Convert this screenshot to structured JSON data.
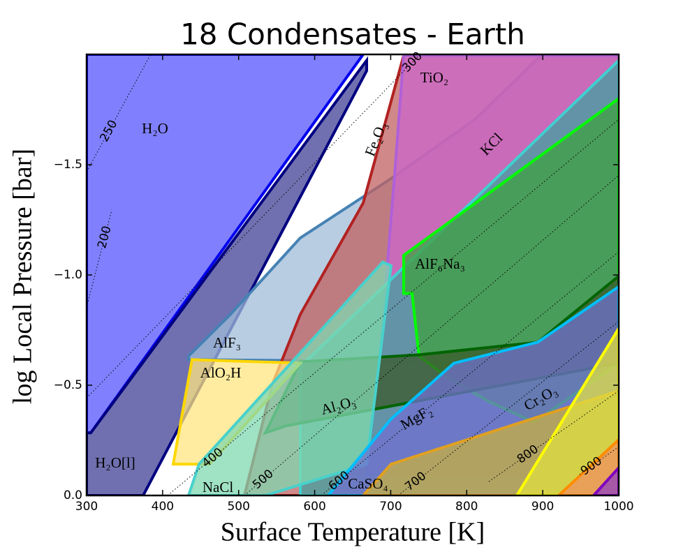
{
  "chart_data": {
    "type": "area",
    "title": "18 Condensates - Earth",
    "x_label": "Surface Temperature [K]",
    "y_label": "log Local Pressure [bar]",
    "xlim": [
      300,
      1000
    ],
    "ylim": [
      0,
      -2.0
    ],
    "xticks": [
      300,
      400,
      500,
      600,
      700,
      800,
      900,
      1000
    ],
    "yticks": [
      {
        "value": 0,
        "label": "0.0"
      },
      {
        "value": -0.5,
        "label": "−0.5"
      },
      {
        "value": -1.0,
        "label": "−1.0"
      },
      {
        "value": -1.5,
        "label": "−1.5"
      }
    ],
    "series": [
      {
        "name": "H₂O",
        "color": "#0000ee",
        "fill_color": "#8080ff",
        "x": [
          300,
          663.8,
          305.5,
          300
        ],
        "y": [
          -2.0,
          -2.0,
          -0.284,
          -0.284
        ]
      },
      {
        "name": "H₂O[l]",
        "color": "#000080",
        "fill_color": "#7070b0",
        "x": [
          300,
          305.5,
          668.4,
          668.4,
          374.4,
          300
        ],
        "y": [
          -0.284,
          -0.284,
          -1.973,
          -1.926,
          0,
          0
        ]
      },
      {
        "name": "AlF₃",
        "color": "#4682b4",
        "fill_color": "#a0bcd8",
        "x": [
          434.1,
          489.2,
          581.1,
          700.5,
          810.7,
          898.0,
          1000,
          1000,
          434.1
        ],
        "y": [
          -0.632,
          -0.821,
          -1.168,
          -1.437,
          -1.705,
          -1.996,
          -1.996,
          -0.6,
          -0.616
        ]
      },
      {
        "name": "Fe₂O₃",
        "color": "#b22222",
        "fill_color": "#c06060",
        "x": [
          717.1,
          1000,
          1000,
          507.6,
          544.4,
          581.1,
          663.8
        ],
        "y": [
          -1.996,
          -1.996,
          0,
          0,
          -0.505,
          -0.821,
          -1.326
        ]
      },
      {
        "name": "TiO₂",
        "color": "#b060d8",
        "fill_color": "#cc66cc",
        "x": [
          717.1,
          1000,
          1000,
          668.4,
          686.7,
          705.1
        ],
        "y": [
          -1.996,
          -1.996,
          -0.095,
          -0.095,
          -0.663,
          -1.452
        ]
      },
      {
        "name": "KCl",
        "color": "#40d0d0",
        "fill_color": "#40a0a0",
        "x": [
          581.1,
          1000,
          1000,
          581.1
        ],
        "y": [
          -0.584,
          -1.973,
          0,
          0
        ]
      },
      {
        "name": "AlF₆Na₃",
        "color": "#00ff00",
        "fill_color": "#40a040",
        "x": [
          717.1,
          1000,
          1000,
          888.8,
          829.1,
          774.0,
          737.3,
          728.1,
          717.1
        ],
        "y": [
          -1.089,
          -1.8,
          -0.6,
          -0.332,
          -0.426,
          -0.537,
          -0.632,
          -0.916,
          -0.916
        ]
      },
      {
        "name": "Al₂O₃",
        "color": "#006400",
        "fill_color": "#3a5a2a",
        "x": [
          581.1,
          737.3,
          893.4,
          1000,
          1000,
          562.7,
          535.2
        ],
        "y": [
          -0.606,
          -0.638,
          -0.695,
          -0.995,
          -0.6,
          -0.316,
          -0.284
        ]
      },
      {
        "name": "AlO₂H",
        "color": "#ffd700",
        "fill_color": "#ffe680",
        "x": [
          438.7,
          581.1,
          461.7,
          413.9
        ],
        "y": [
          -0.616,
          -0.6,
          -0.142,
          -0.142
        ]
      },
      {
        "name": "NaCl",
        "color": "#48d1cc",
        "fill_color": "#80d8b0",
        "x": [
          447.9,
          689.5,
          700.5,
          668.4,
          535.2,
          434.1
        ],
        "y": [
          -0.142,
          -1.058,
          -1.042,
          -0.142,
          0,
          0
        ]
      },
      {
        "name": "MgF₂",
        "color": "#00bfff",
        "fill_color": "#7070d0",
        "x": [
          617.8,
          700.5,
          783.2,
          893.4,
          1000,
          1000
        ],
        "y": [
          0,
          -0.347,
          -0.6,
          -0.695,
          -0.947,
          0
        ]
      },
      {
        "name": "CaSO₄",
        "color": "#e0a020",
        "fill_color": "#c8b040",
        "x": [
          700.5,
          1000,
          1000,
          663.8
        ],
        "y": [
          -0.142,
          -0.474,
          0,
          0
        ]
      },
      {
        "name": "Cr₂O₃",
        "color": "#ffff00",
        "fill_color": "#e0e040",
        "x": [
          865.9,
          1000,
          1000
        ],
        "y": [
          0,
          -0.758,
          0
        ]
      },
      {
        "color": "#ff8c00",
        "fill_color": "#f09060",
        "x": [
          921.0,
          1000,
          1000
        ],
        "y": [
          0,
          -0.253,
          0
        ]
      },
      {
        "color": "#8000c0",
        "fill_color": "#9040c0",
        "x": [
          966.9,
          1000,
          1000
        ],
        "y": [
          0,
          -0.126,
          0
        ]
      }
    ],
    "contours": [
      {
        "level": 250,
        "x": [
          300,
          383.6
        ],
        "y": [
          -1.468,
          -1.996
        ]
      },
      {
        "level": 200,
        "x": [
          300,
          333.1
        ],
        "y": [
          -0.853,
          -1.295
        ]
      },
      {
        "level": 300,
        "x": [
          300,
          737.3
        ],
        "y": [
          -0.442,
          -1.996
        ]
      },
      {
        "level": 400,
        "x": [
          406.6,
          1000
        ],
        "y": [
          0,
          -1.705
        ]
      },
      {
        "level": 500,
        "x": [
          507.6,
          1000
        ],
        "y": [
          0,
          -1.452
        ]
      },
      {
        "level": 600,
        "x": [
          608.7,
          1000
        ],
        "y": [
          0,
          -1.105
        ]
      },
      {
        "level": 700,
        "x": [
          709.7,
          1000
        ],
        "y": [
          0,
          -0.789
        ]
      },
      {
        "level": 800,
        "x": [
          829.1,
          1000
        ],
        "y": [
          -0.063,
          -0.474
        ]
      },
      {
        "level": 900,
        "x": [
          948.6,
          1000
        ],
        "y": [
          -0.095,
          -0.221
        ]
      }
    ]
  }
}
